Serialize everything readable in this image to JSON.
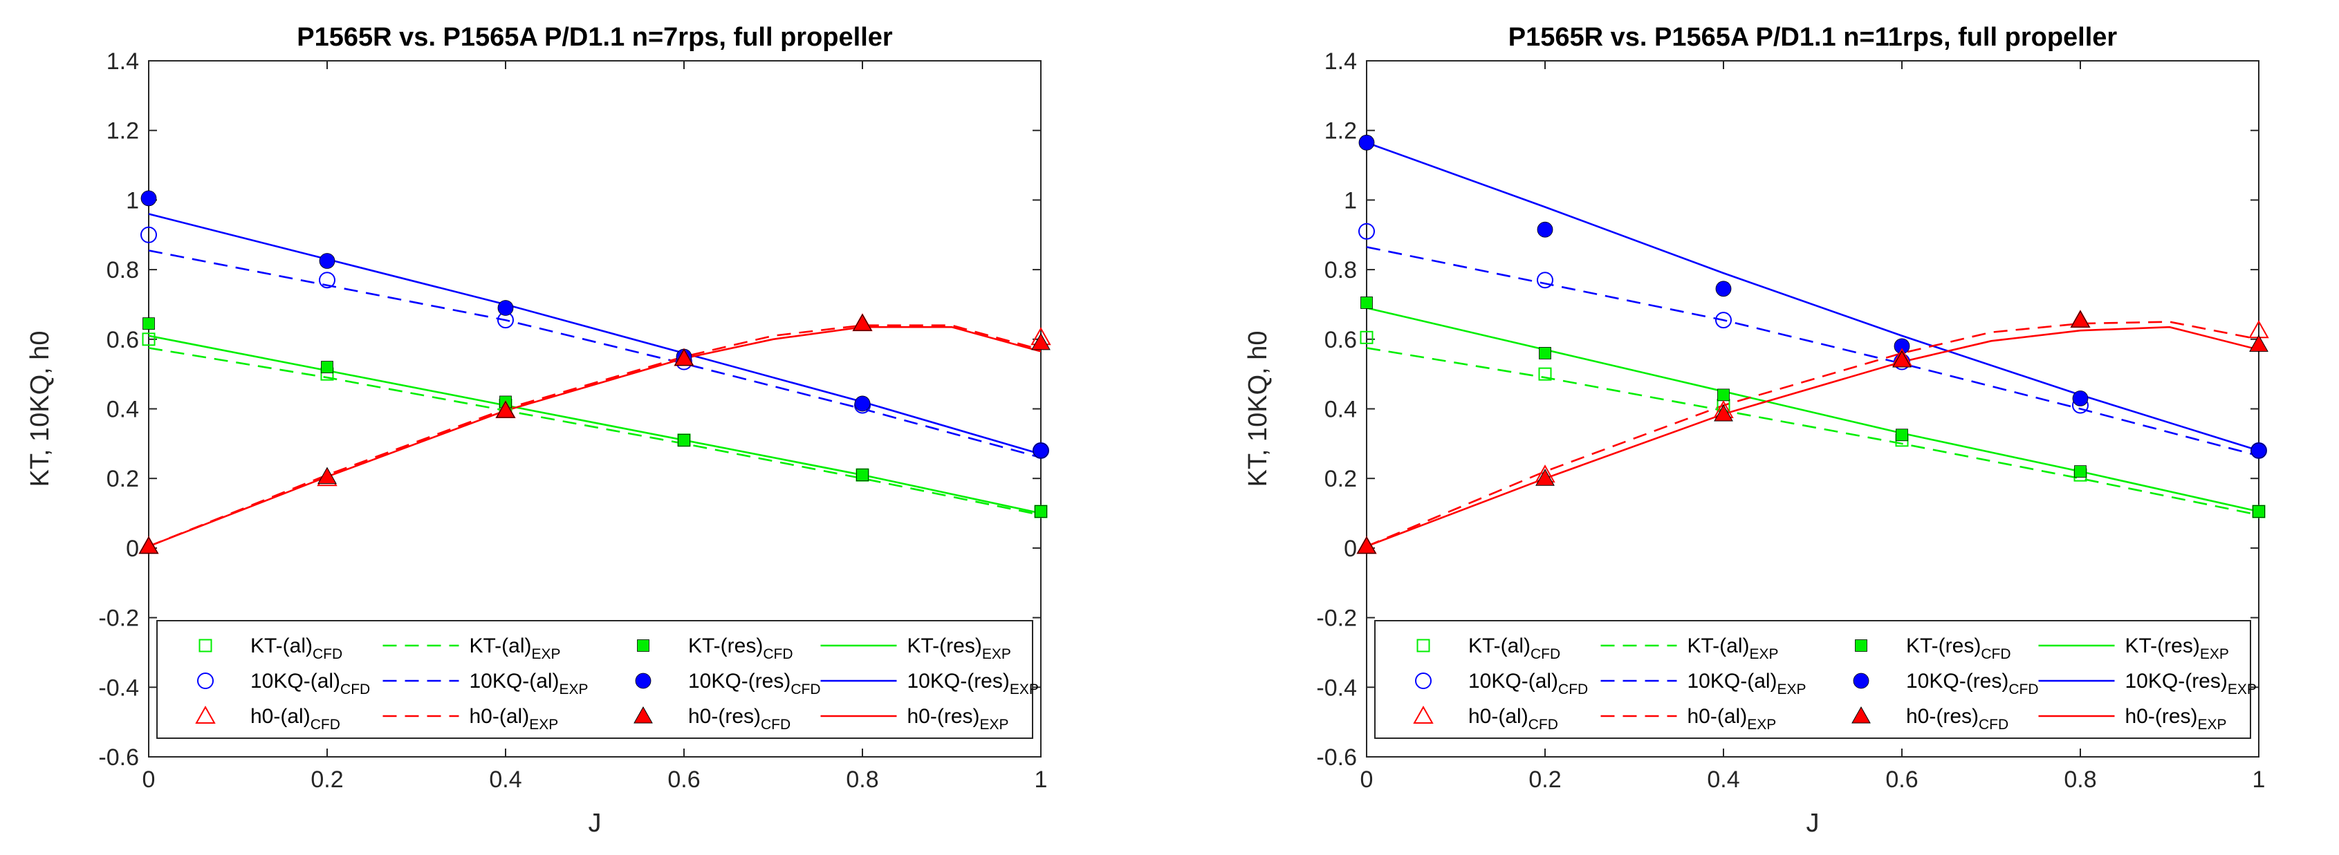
{
  "legend_entries": [
    {
      "key": "kt_al_cfd",
      "base": "KT-(al)",
      "sub": "CFD"
    },
    {
      "key": "kt_al_exp",
      "base": "KT-(al)",
      "sub": "EXP"
    },
    {
      "key": "kt_res_cfd",
      "base": "KT-(res)",
      "sub": "CFD"
    },
    {
      "key": "kt_res_exp",
      "base": "KT-(res)",
      "sub": "EXP"
    },
    {
      "key": "kq_al_cfd",
      "base": "10KQ-(al)",
      "sub": "CFD"
    },
    {
      "key": "kq_al_exp",
      "base": "10KQ-(al)",
      "sub": "EXP"
    },
    {
      "key": "kq_res_cfd",
      "base": "10KQ-(res)",
      "sub": "CFD"
    },
    {
      "key": "kq_res_exp",
      "base": "10KQ-(res)",
      "sub": "EXP"
    },
    {
      "key": "h0_al_cfd",
      "base": "h0-(al)",
      "sub": "CFD"
    },
    {
      "key": "h0_al_exp",
      "base": "h0-(al)",
      "sub": "EXP"
    },
    {
      "key": "h0_res_cfd",
      "base": "h0-(res)",
      "sub": "CFD"
    },
    {
      "key": "h0_res_exp",
      "base": "h0-(res)",
      "sub": "EXP"
    }
  ],
  "styles": {
    "kt_al_cfd": {
      "color": "#00ee00",
      "marker": "square-open"
    },
    "kt_res_cfd": {
      "color": "#00ee00",
      "marker": "square-filled"
    },
    "kq_al_cfd": {
      "color": "#0000ff",
      "marker": "circle-open"
    },
    "kq_res_cfd": {
      "color": "#0000ff",
      "marker": "circle-filled"
    },
    "h0_al_cfd": {
      "color": "#ff0000",
      "marker": "triangle-open"
    },
    "h0_res_cfd": {
      "color": "#ff0000",
      "marker": "triangle-filled"
    },
    "kt_al_exp": {
      "color": "#00ee00",
      "dash": "dashed"
    },
    "kt_res_exp": {
      "color": "#00ee00",
      "dash": "solid"
    },
    "kq_al_exp": {
      "color": "#0000ff",
      "dash": "dashed"
    },
    "kq_res_exp": {
      "color": "#0000ff",
      "dash": "solid"
    },
    "h0_al_exp": {
      "color": "#ff0000",
      "dash": "dashed"
    },
    "h0_res_exp": {
      "color": "#ff0000",
      "dash": "solid"
    }
  },
  "chart_data": [
    {
      "type": "line",
      "title": "P1565R vs. P1565A P/D1.1 n=7rps, full propeller",
      "xlabel": "J",
      "ylabel": "KT, 10KQ, h0",
      "xlim": [
        0,
        1
      ],
      "ylim": [
        -0.6,
        1.4
      ],
      "xticks": [
        0,
        0.2,
        0.4,
        0.6,
        0.8,
        1
      ],
      "xtick_labels": [
        "0",
        "0.2",
        "0.4",
        "0.6",
        "0.8",
        "1"
      ],
      "yticks": [
        -0.6,
        -0.4,
        -0.2,
        0,
        0.2,
        0.4,
        0.6,
        0.8,
        1,
        1.2,
        1.4
      ],
      "ytick_labels": [
        "-0.6",
        "-0.4",
        "-0.2",
        "0",
        "0.2",
        "0.4",
        "0.6",
        "0.8",
        "1",
        "1.2",
        "1.4"
      ],
      "legend_position": "bottom",
      "series": [
        {
          "name": "KT-(al)CFD",
          "key": "kt_al_cfd",
          "x": [
            0,
            0.2,
            0.4,
            0.6,
            0.8,
            1
          ],
          "y": [
            0.6,
            0.5,
            0.41,
            0.31,
            0.21,
            0.105
          ]
        },
        {
          "name": "KT-(res)CFD",
          "key": "kt_res_cfd",
          "x": [
            0,
            0.2,
            0.4,
            0.6,
            0.8,
            1
          ],
          "y": [
            0.645,
            0.52,
            0.42,
            0.31,
            0.21,
            0.105
          ]
        },
        {
          "name": "10KQ-(al)CFD",
          "key": "kq_al_cfd",
          "x": [
            0,
            0.2,
            0.4,
            0.6,
            0.8,
            1
          ],
          "y": [
            0.9,
            0.77,
            0.655,
            0.535,
            0.41,
            0.28
          ]
        },
        {
          "name": "10KQ-(res)CFD",
          "key": "kq_res_cfd",
          "x": [
            0,
            0.2,
            0.4,
            0.6,
            0.8,
            1
          ],
          "y": [
            1.005,
            0.825,
            0.69,
            0.55,
            0.415,
            0.28
          ]
        },
        {
          "name": "h0-(al)CFD",
          "key": "h0_al_cfd",
          "x": [
            0,
            0.2,
            0.4,
            0.6,
            0.8,
            1
          ],
          "y": [
            0.005,
            0.2,
            0.395,
            0.545,
            0.645,
            0.605
          ]
        },
        {
          "name": "h0-(res)CFD",
          "key": "h0_res_cfd",
          "x": [
            0,
            0.2,
            0.4,
            0.6,
            0.8,
            1
          ],
          "y": [
            0.005,
            0.205,
            0.395,
            0.545,
            0.645,
            0.59
          ]
        },
        {
          "name": "KT-(al)EXP",
          "key": "kt_al_exp",
          "x": [
            0,
            0.2,
            0.4,
            0.6,
            0.8,
            1
          ],
          "y": [
            0.575,
            0.49,
            0.395,
            0.3,
            0.2,
            0.095
          ]
        },
        {
          "name": "KT-(res)EXP",
          "key": "kt_res_exp",
          "x": [
            0,
            0.2,
            0.4,
            0.6,
            0.8,
            1
          ],
          "y": [
            0.61,
            0.51,
            0.41,
            0.31,
            0.21,
            0.1
          ]
        },
        {
          "name": "10KQ-(al)EXP",
          "key": "kq_al_exp",
          "x": [
            0,
            0.2,
            0.4,
            0.6,
            0.8,
            1
          ],
          "y": [
            0.855,
            0.755,
            0.655,
            0.53,
            0.4,
            0.26
          ]
        },
        {
          "name": "10KQ-(res)EXP",
          "key": "kq_res_exp",
          "x": [
            0,
            0.2,
            0.4,
            0.6,
            0.8,
            1
          ],
          "y": [
            0.96,
            0.83,
            0.7,
            0.56,
            0.42,
            0.27
          ]
        },
        {
          "name": "h0-(al)EXP",
          "key": "h0_al_exp",
          "x": [
            0,
            0.2,
            0.4,
            0.6,
            0.7,
            0.8,
            0.9,
            1
          ],
          "y": [
            0.005,
            0.21,
            0.4,
            0.55,
            0.61,
            0.64,
            0.64,
            0.57
          ]
        },
        {
          "name": "h0-(res)EXP",
          "key": "h0_res_exp",
          "x": [
            0,
            0.2,
            0.4,
            0.6,
            0.7,
            0.8,
            0.9,
            1
          ],
          "y": [
            0.005,
            0.205,
            0.395,
            0.545,
            0.6,
            0.635,
            0.635,
            0.565
          ]
        }
      ]
    },
    {
      "type": "line",
      "title": "P1565R vs. P1565A P/D1.1 n=11rps, full propeller",
      "xlabel": "J",
      "ylabel": "KT, 10KQ, h0",
      "xlim": [
        0,
        1
      ],
      "ylim": [
        -0.6,
        1.4
      ],
      "xticks": [
        0,
        0.2,
        0.4,
        0.6,
        0.8,
        1
      ],
      "xtick_labels": [
        "0",
        "0.2",
        "0.4",
        "0.6",
        "0.8",
        "1"
      ],
      "yticks": [
        -0.6,
        -0.4,
        -0.2,
        0,
        0.2,
        0.4,
        0.6,
        0.8,
        1,
        1.2,
        1.4
      ],
      "ytick_labels": [
        "-0.6",
        "-0.4",
        "-0.2",
        "0",
        "0.2",
        "0.4",
        "0.6",
        "0.8",
        "1",
        "1.2",
        "1.4"
      ],
      "legend_position": "bottom",
      "series": [
        {
          "name": "KT-(al)CFD",
          "key": "kt_al_cfd",
          "x": [
            0,
            0.2,
            0.4,
            0.6,
            0.8,
            1
          ],
          "y": [
            0.605,
            0.5,
            0.41,
            0.31,
            0.21,
            0.105
          ]
        },
        {
          "name": "KT-(res)CFD",
          "key": "kt_res_cfd",
          "x": [
            0,
            0.2,
            0.4,
            0.6,
            0.8,
            1
          ],
          "y": [
            0.705,
            0.56,
            0.44,
            0.325,
            0.22,
            0.105
          ]
        },
        {
          "name": "10KQ-(al)CFD",
          "key": "kq_al_cfd",
          "x": [
            0,
            0.2,
            0.4,
            0.6,
            0.8,
            1
          ],
          "y": [
            0.91,
            0.77,
            0.655,
            0.535,
            0.41,
            0.28
          ]
        },
        {
          "name": "10KQ-(res)CFD",
          "key": "kq_res_cfd",
          "x": [
            0,
            0.2,
            0.4,
            0.6,
            0.8,
            1
          ],
          "y": [
            1.165,
            0.915,
            0.745,
            0.58,
            0.43,
            0.28
          ]
        },
        {
          "name": "h0-(al)CFD",
          "key": "h0_al_cfd",
          "x": [
            0,
            0.2,
            0.4,
            0.6,
            0.8,
            1
          ],
          "y": [
            0.005,
            0.21,
            0.395,
            0.545,
            0.655,
            0.625
          ]
        },
        {
          "name": "h0-(res)CFD",
          "key": "h0_res_cfd",
          "x": [
            0,
            0.2,
            0.4,
            0.6,
            0.8,
            1
          ],
          "y": [
            0.005,
            0.2,
            0.385,
            0.54,
            0.655,
            0.585
          ]
        },
        {
          "name": "KT-(al)EXP",
          "key": "kt_al_exp",
          "x": [
            0,
            0.2,
            0.4,
            0.6,
            0.8,
            1
          ],
          "y": [
            0.575,
            0.49,
            0.395,
            0.3,
            0.2,
            0.095
          ]
        },
        {
          "name": "KT-(res)EXP",
          "key": "kt_res_exp",
          "x": [
            0,
            0.2,
            0.4,
            0.6,
            0.8,
            1
          ],
          "y": [
            0.69,
            0.57,
            0.45,
            0.33,
            0.22,
            0.105
          ]
        },
        {
          "name": "10KQ-(al)EXP",
          "key": "kq_al_exp",
          "x": [
            0,
            0.2,
            0.4,
            0.6,
            0.8,
            1
          ],
          "y": [
            0.865,
            0.76,
            0.655,
            0.53,
            0.4,
            0.265
          ]
        },
        {
          "name": "10KQ-(res)EXP",
          "key": "kq_res_exp",
          "x": [
            0,
            0.2,
            0.4,
            0.6,
            0.8,
            1
          ],
          "y": [
            1.165,
            0.98,
            0.79,
            0.61,
            0.44,
            0.28
          ]
        },
        {
          "name": "h0-(al)EXP",
          "key": "h0_al_exp",
          "x": [
            0,
            0.2,
            0.4,
            0.6,
            0.7,
            0.8,
            0.9,
            1
          ],
          "y": [
            0.005,
            0.22,
            0.41,
            0.56,
            0.62,
            0.645,
            0.65,
            0.6
          ]
        },
        {
          "name": "h0-(res)EXP",
          "key": "h0_res_exp",
          "x": [
            0,
            0.2,
            0.4,
            0.6,
            0.7,
            0.8,
            0.9,
            1
          ],
          "y": [
            0.005,
            0.2,
            0.385,
            0.535,
            0.595,
            0.625,
            0.635,
            0.57
          ]
        }
      ]
    }
  ]
}
